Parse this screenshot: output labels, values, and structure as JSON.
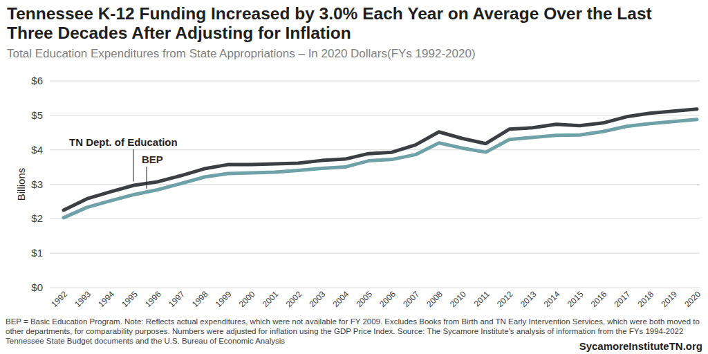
{
  "chart_data": {
    "type": "line",
    "title": "Tennessee K-12 Funding Increased by 3.0% Each Year on Average Over the Last Three Decades After Adjusting for Inflation",
    "subtitle": "Total Education Expenditures from State Appropriations – In 2020 Dollars(FYs 1992-2020)",
    "y_label": "Billions",
    "note": "BEP = Basic Education Program. Note: Reflects actual expenditures, which were not available for FY 2009. Excludes Books from Birth and TN Early Intervention Services, which were both moved to other departments, for comparability purposes. Numbers were adjusted for inflation using the GDP Price Index. Source: The Sycamore Institute's analysis of information from the FYs 1994-2022 Tennessee State Budget documents and the U.S. Bureau of Economic Analysis",
    "website": "SycamoreInstituteTN.org",
    "categories": [
      "1992",
      "1993",
      "1994",
      "1995",
      "1996",
      "1997",
      "1998",
      "1999",
      "2000",
      "2001",
      "2002",
      "2003",
      "2004",
      "2005",
      "2006",
      "2007",
      "2008",
      "2010",
      "2011",
      "2012",
      "2013",
      "2014",
      "2015",
      "2016",
      "2017",
      "2018",
      "2019",
      "2020"
    ],
    "series": [
      {
        "name": "TN Dept. of Education",
        "color": "#3b3e43",
        "values": [
          2.25,
          2.58,
          2.78,
          2.97,
          3.07,
          3.25,
          3.45,
          3.57,
          3.57,
          3.59,
          3.61,
          3.69,
          3.73,
          3.89,
          3.93,
          4.14,
          4.52,
          4.33,
          4.18,
          4.6,
          4.64,
          4.74,
          4.7,
          4.78,
          4.96,
          5.06,
          5.12,
          5.18
        ]
      },
      {
        "name": "BEP",
        "color": "#6fa1a8",
        "values": [
          2.03,
          2.33,
          2.52,
          2.7,
          2.84,
          3.02,
          3.21,
          3.31,
          3.33,
          3.35,
          3.4,
          3.46,
          3.5,
          3.68,
          3.72,
          3.86,
          4.2,
          4.05,
          3.93,
          4.3,
          4.36,
          4.42,
          4.43,
          4.53,
          4.68,
          4.76,
          4.82,
          4.88
        ]
      }
    ],
    "ylim": [
      0,
      6
    ],
    "yticks": [
      {
        "value": 0,
        "label": "$0"
      },
      {
        "value": 1,
        "label": "$1"
      },
      {
        "value": 2,
        "label": "$2"
      },
      {
        "value": 3,
        "label": "$3"
      },
      {
        "value": 4,
        "label": "$4"
      },
      {
        "value": 5,
        "label": "$5"
      },
      {
        "value": 6,
        "label": "$6"
      }
    ],
    "grid": true
  }
}
